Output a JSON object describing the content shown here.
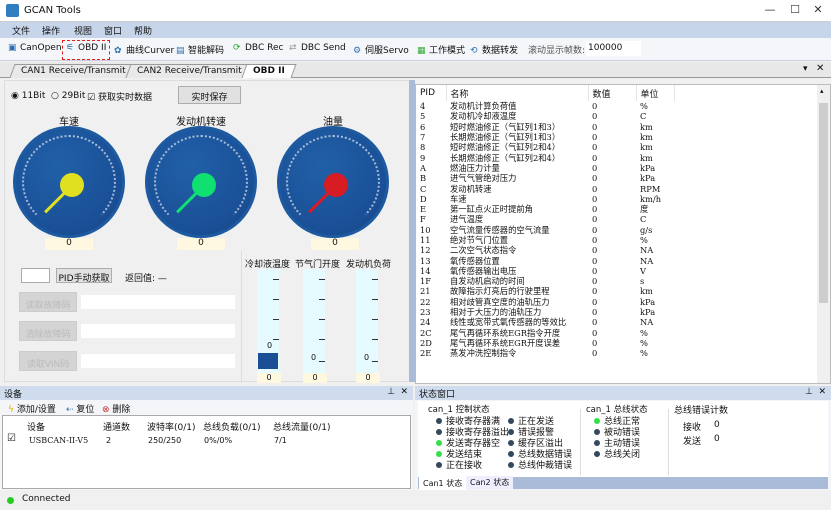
{
  "window": {
    "title": "GCAN Tools",
    "minimize": "—",
    "maximize": "☐",
    "close": "✕"
  },
  "menu": [
    "文件",
    "操作",
    "视图",
    "窗口",
    "帮助"
  ],
  "toolbar": {
    "items": [
      {
        "label": "CanOpen",
        "icon": "canopen-icon"
      },
      {
        "label": "OBD II",
        "icon": "obd-icon"
      },
      {
        "label": "曲线Curver",
        "icon": "curve-icon"
      },
      {
        "label": "智能解码",
        "icon": "decode-icon"
      },
      {
        "label": "DBC Rec",
        "icon": "dbc-rec-icon"
      },
      {
        "label": "DBC Send",
        "icon": "dbc-send-icon"
      },
      {
        "label": "伺服Servo",
        "icon": "servo-icon"
      },
      {
        "label": "工作模式",
        "icon": "work-mode-icon"
      },
      {
        "label": "数据转发",
        "icon": "forward-icon"
      }
    ],
    "scroll_frames_label": "滚动显示帧数:",
    "scroll_frames_value": "100000",
    "highlight_color": "#e02020"
  },
  "tabs": [
    {
      "label": "CAN1 Receive/Transmit"
    },
    {
      "label": "CAN2 Receive/Transmit"
    },
    {
      "label": "OBD II",
      "active": true
    }
  ],
  "obd": {
    "radio_11bit": "11Bit",
    "radio_29bit": "29Bit",
    "selected": "11Bit",
    "realtime_checkbox": "获取实时数据",
    "realtime_checked": true,
    "save_button": "实时保存",
    "gauges": [
      {
        "title": "车速",
        "value": "0",
        "color": "#e0e020"
      },
      {
        "title": "发动机转速",
        "value": "0",
        "color": "#10e070"
      },
      {
        "title": "油量",
        "value": "0",
        "color": "#d81c24"
      }
    ],
    "pid_button": "PID手动获取",
    "return_label": "返回值: —",
    "read_dtc_button": "读取故障码",
    "clear_dtc_button": "清除故障码",
    "read_vin_button": "读取VIN码",
    "bars": [
      {
        "title": "冷却液温度",
        "value": "0",
        "scale_label": "0"
      },
      {
        "title": "节气门开度",
        "value": "0",
        "scale_label": "0"
      },
      {
        "title": "发动机负荷",
        "value": "0",
        "scale_label": "0"
      }
    ]
  },
  "pid_table": {
    "headers": [
      "PID",
      "名称",
      "数值",
      "单位"
    ],
    "rows": [
      [
        "4",
        "发动机计算负荷值",
        "0",
        "%"
      ],
      [
        "5",
        "发动机冷却液温度",
        "0",
        "C"
      ],
      [
        "6",
        "短时燃油修正（气缸列1和3）",
        "0",
        "km"
      ],
      [
        "7",
        "长期燃油修正（气缸列1和3）",
        "0",
        "km"
      ],
      [
        "8",
        "短时燃油修正（气缸列2和4）",
        "0",
        "km"
      ],
      [
        "9",
        "长期燃油修正（气缸列2和4）",
        "0",
        "km"
      ],
      [
        "A",
        "燃油压力计量",
        "0",
        "kPa"
      ],
      [
        "B",
        "进气气管绝对压力",
        "0",
        "kPa"
      ],
      [
        "C",
        "发动机转速",
        "0",
        "RPM"
      ],
      [
        "D",
        "车速",
        "0",
        "km/h"
      ],
      [
        "E",
        "第一缸点火正时提前角",
        "0",
        "度"
      ],
      [
        "F",
        "进气温度",
        "0",
        "C"
      ],
      [
        "10",
        "空气流量传感器的空气流量",
        "0",
        "g/s"
      ],
      [
        "11",
        "绝对节气门位置",
        "0",
        "%"
      ],
      [
        "12",
        "二次空气状态指令",
        "0",
        "NA"
      ],
      [
        "13",
        "氧传感器位置",
        "0",
        "NA"
      ],
      [
        "14",
        "氧传感器输出电压",
        "0",
        "V"
      ],
      [
        "1F",
        "自发动机启动的时间",
        "0",
        "s"
      ],
      [
        "21",
        "故障指示灯亮后的行驶里程",
        "0",
        "km"
      ],
      [
        "22",
        "相对歧管真空度的油轨压力",
        "0",
        "kPa"
      ],
      [
        "23",
        "相对于大压力的油轨压力",
        "0",
        "kPa"
      ],
      [
        "24",
        "线性或宽带式氧传感器的等效比",
        "0",
        "NA"
      ],
      [
        "2C",
        "尾气再循环系统EGR指令开度",
        "0",
        "%"
      ],
      [
        "2D",
        "尾气再循环系统EGR开度误差",
        "0",
        "%"
      ],
      [
        "2E",
        "蒸发冲洗控制指令",
        "0",
        "%"
      ]
    ]
  },
  "device_panel": {
    "title": "设备",
    "add": "添加/设置",
    "reset": "复位",
    "delete": "删除",
    "headers": [
      "设备",
      "通道数",
      "波特率(0/1)",
      "总线负载(0/1)",
      "总线流量(0/1)"
    ],
    "rows": [
      {
        "checked": true,
        "cells": [
          "USBCAN-II-V5",
          "2",
          "250/250",
          "0%/0%",
          "7/1"
        ]
      }
    ]
  },
  "status_panel": {
    "title": "状态窗口",
    "control_group": "can_1 控制状态",
    "control_left": [
      {
        "label": "接收寄存器满",
        "on": false
      },
      {
        "label": "接收寄存器溢出",
        "on": false
      },
      {
        "label": "发送寄存器空",
        "on": true
      },
      {
        "label": "发送结束",
        "on": true
      },
      {
        "label": "正在接收",
        "on": false
      }
    ],
    "control_right": [
      {
        "label": "正在发送",
        "on": false
      },
      {
        "label": "错误报警",
        "on": false
      },
      {
        "label": "缓存区溢出",
        "on": false
      },
      {
        "label": "总线数据错误",
        "on": false
      },
      {
        "label": "总线仲裁错误",
        "on": false
      }
    ],
    "bus_group": "can_1 总线状态",
    "bus": [
      {
        "label": "总线正常",
        "on": true
      },
      {
        "label": "被动错误",
        "on": false
      },
      {
        "label": "主动错误",
        "on": false
      },
      {
        "label": "总线关闭",
        "on": false
      }
    ],
    "err_group": "总线错误计数",
    "rx_label": "接收",
    "rx_value": "0",
    "tx_label": "发送",
    "tx_value": "0",
    "tabs": [
      "Can1 状态",
      "Can2 状态"
    ]
  },
  "statusbar": {
    "text": "Connected",
    "color": "#22cc22"
  }
}
